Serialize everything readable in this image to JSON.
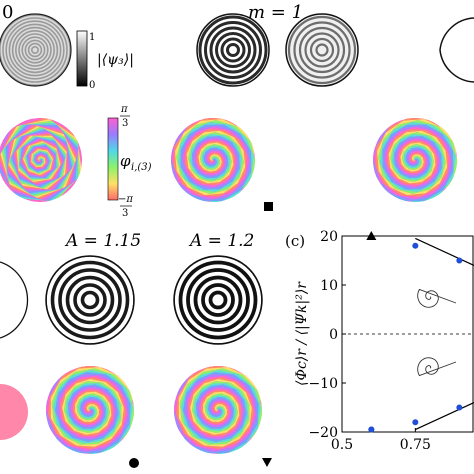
{
  "labels": {
    "m0": "0",
    "m1": "m = 1",
    "psi_colorbar_label": "|⟨ψ₃⟩|",
    "psi_cb_top": "1",
    "psi_cb_bottom": "0",
    "phi_colorbar_label": "φ",
    "phi_sub": "i,(3)",
    "phi_cb_top_num": "π",
    "phi_cb_top_den": "3",
    "phi_cb_bottom_num": "−π",
    "phi_cb_bottom_den": "3",
    "a1": "A = 1.15",
    "a2": "A = 1.2",
    "panel_c": "(c)"
  },
  "colors": {
    "spiral_palette": [
      "#ff66cc",
      "#ff8a66",
      "#ffe066",
      "#8cf26b",
      "#56e0d6",
      "#6fa3ff",
      "#b47cff"
    ],
    "marker_blue": "#1f4fd6",
    "line": "#000000"
  },
  "markers": [
    "square-marker",
    "circle-marker",
    "triangle-down-marker"
  ],
  "chart_data": {
    "type": "scatter",
    "title": "",
    "ylabel": "⟨Φc⟩r / ⟨|Ψk|²⟩r",
    "xlabel": "",
    "xlim": [
      0.5,
      0.95
    ],
    "ylim": [
      -20,
      20
    ],
    "x_ticks": [
      "0.5",
      "0.75"
    ],
    "y_ticks": [
      "20",
      "10",
      "0",
      "−10",
      "−20"
    ],
    "zero_line": "dashed",
    "series": [
      {
        "marker": "circle",
        "color": "#1f4fd6",
        "x": [
          0.6,
          0.75,
          0.9,
          0.6,
          0.75,
          0.9
        ],
        "y": [
          -19.5,
          18,
          15,
          -19.5,
          -18,
          -15
        ]
      },
      {
        "marker": "triangle-up",
        "color": "#000000",
        "x": [
          0.6
        ],
        "y": [
          20
        ]
      }
    ],
    "fit_lines": [
      {
        "x": [
          0.75,
          0.95
        ],
        "y": [
          19.5,
          14
        ]
      },
      {
        "x": [
          0.75,
          0.95
        ],
        "y": [
          -19.5,
          -14
        ]
      }
    ]
  }
}
